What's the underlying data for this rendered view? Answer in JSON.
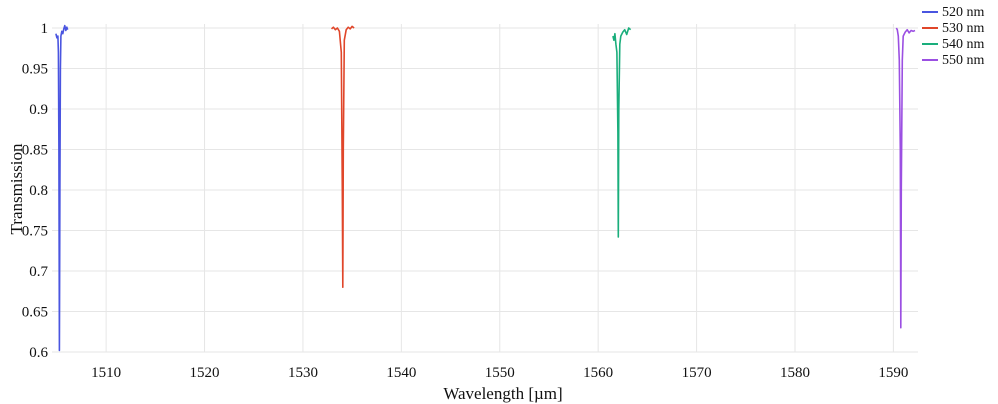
{
  "chart_data": {
    "type": "line",
    "xlabel": "Wavelength [µm]",
    "ylabel": "Transmission",
    "xlim": [
      1504.5,
      1592.5
    ],
    "ylim": [
      0.6,
      1.005
    ],
    "xticks": [
      1510,
      1520,
      1530,
      1540,
      1550,
      1560,
      1570,
      1580,
      1590
    ],
    "yticks": [
      0.6,
      0.65,
      0.7,
      0.75,
      0.8,
      0.85,
      0.9,
      0.95,
      1
    ],
    "grid": true,
    "legend_position": "top-right",
    "series": [
      {
        "name": "520 nm",
        "color": "#4a55e0",
        "x": [
          1504.9,
          1505.0,
          1505.1,
          1505.15,
          1505.2,
          1505.25,
          1505.3,
          1505.35,
          1505.4,
          1505.5,
          1505.6,
          1505.7,
          1505.8,
          1505.9,
          1506.0,
          1506.1
        ],
        "y": [
          0.993,
          0.988,
          0.99,
          0.97,
          0.85,
          0.602,
          0.8,
          0.95,
          0.99,
          0.996,
          0.993,
          0.999,
          1.003,
          0.997,
          1.001,
          0.998
        ]
      },
      {
        "name": "530 nm",
        "color": "#e0462a",
        "x": [
          1532.9,
          1533.1,
          1533.3,
          1533.5,
          1533.7,
          1533.9,
          1534.0,
          1534.05,
          1534.1,
          1534.2,
          1534.4,
          1534.6,
          1534.8,
          1535.0,
          1535.2
        ],
        "y": [
          0.999,
          1.001,
          0.998,
          1.0,
          0.996,
          0.97,
          0.8,
          0.68,
          0.85,
          0.985,
          0.998,
          1.001,
          0.999,
          1.002,
          1.0
        ]
      },
      {
        "name": "540 nm",
        "color": "#1aae7c",
        "x": [
          1561.5,
          1561.6,
          1561.7,
          1561.8,
          1561.9,
          1562.0,
          1562.05,
          1562.1,
          1562.2,
          1562.3,
          1562.5,
          1562.7,
          1562.9,
          1563.1,
          1563.3
        ],
        "y": [
          0.99,
          0.985,
          0.993,
          0.98,
          0.97,
          0.87,
          0.742,
          0.9,
          0.98,
          0.99,
          0.995,
          0.998,
          0.992,
          1.0,
          0.998
        ]
      },
      {
        "name": "550 nm",
        "color": "#9b4fe2",
        "x": [
          1590.3,
          1590.4,
          1590.5,
          1590.6,
          1590.7,
          1590.75,
          1590.8,
          1590.9,
          1591.0,
          1591.2,
          1591.4,
          1591.6,
          1591.8,
          1592.0,
          1592.2
        ],
        "y": [
          1.0,
          0.998,
          0.99,
          0.96,
          0.85,
          0.63,
          0.8,
          0.96,
          0.99,
          0.995,
          0.998,
          0.994,
          0.997,
          0.996,
          0.997
        ]
      }
    ]
  }
}
